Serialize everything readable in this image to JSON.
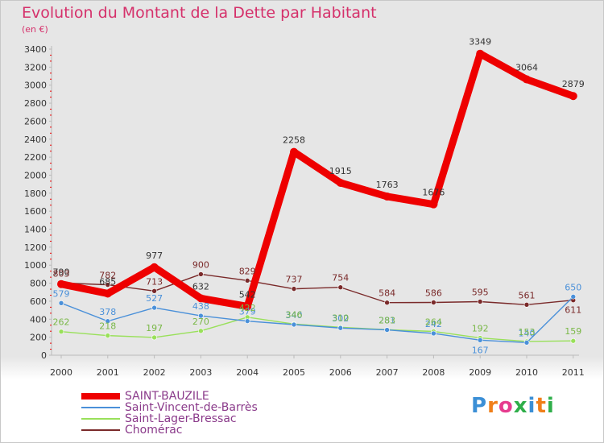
{
  "title": "Evolution du Montant de la Dette par Habitant",
  "subtitle": "(en €)",
  "logo_text": "Proxiti",
  "chart_data": {
    "type": "line",
    "title": "Evolution du Montant de la Dette par Habitant",
    "ylabel": "(en €)",
    "xlabel": "",
    "ylim": [
      0,
      3400
    ],
    "yticks": [
      0,
      200,
      400,
      600,
      800,
      1000,
      1200,
      1400,
      1600,
      1800,
      2000,
      2200,
      2400,
      2600,
      2800,
      3000,
      3200,
      3400
    ],
    "grid": false,
    "legend_position": "bottom-left",
    "categories": [
      "2000",
      "2001",
      "2002",
      "2003",
      "2004",
      "2005",
      "2006",
      "2007",
      "2008",
      "2009",
      "2010",
      "2011"
    ],
    "series": [
      {
        "name": "SAINT-BAUZILE",
        "color": "#ee0000",
        "label_color": "#333333",
        "values": [
          790,
          685,
          977,
          632,
          542,
          2258,
          1915,
          1763,
          1676,
          3349,
          3064,
          2879
        ],
        "labels": [
          "790",
          "685",
          "977",
          "632",
          "542",
          "2258",
          "1915",
          "1763",
          "1676",
          "3349",
          "3064",
          "2879"
        ],
        "label_pos": [
          "above",
          "above",
          "above",
          "above",
          "above",
          "above",
          "above",
          "above",
          "above",
          "above",
          "above",
          "above"
        ]
      },
      {
        "name": "Saint-Vincent-de-Barrès",
        "color": "#4a90d9",
        "label_color": "#4a90d9",
        "values": [
          579,
          378,
          527,
          438,
          379,
          340,
          302,
          281,
          242,
          167,
          140,
          650
        ],
        "labels": [
          "579",
          "378",
          "527",
          "438",
          "379",
          "340",
          "302",
          "281",
          "242",
          "167",
          "140",
          "650"
        ],
        "label_pos": [
          "above",
          "above",
          "above",
          "above",
          "above",
          "above",
          "above",
          "above",
          "above",
          "below",
          "above",
          "above"
        ]
      },
      {
        "name": "Saint-Lager-Bressac",
        "color": "#99e05a",
        "label_color": "#7ab848",
        "values": [
          262,
          218,
          197,
          270,
          422,
          346,
          310,
          283,
          264,
          192,
          153,
          159
        ],
        "labels": [
          "262",
          "218",
          "197",
          "270",
          "422",
          "346",
          "310",
          "283",
          "264",
          "192",
          "153",
          "159"
        ],
        "label_pos": [
          "above",
          "above",
          "above",
          "above",
          "above",
          "above",
          "above",
          "above",
          "above",
          "above",
          "above",
          "above"
        ]
      },
      {
        "name": "Chomérac",
        "color": "#7a2a2a",
        "label_color": "#7a2a2a",
        "values": [
          803,
          782,
          713,
          900,
          829,
          737,
          754,
          584,
          586,
          595,
          561,
          611
        ],
        "labels": [
          "803",
          "782",
          "713",
          "900",
          "829",
          "737",
          "754",
          "584",
          "586",
          "595",
          "561",
          "611"
        ],
        "label_pos": [
          "above",
          "above",
          "above",
          "above",
          "above",
          "above",
          "above",
          "above",
          "above",
          "above",
          "above",
          "below"
        ]
      }
    ]
  },
  "colors": {
    "title": "#d5316b",
    "axis_text": "#333333",
    "axis_line": "#bbbbbb",
    "tick_marks": "#ee0000",
    "legend_text": "#8a3a8a"
  }
}
